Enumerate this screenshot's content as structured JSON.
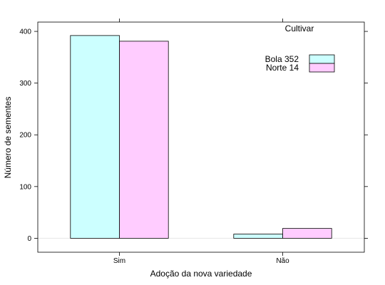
{
  "chart_data": {
    "type": "bar",
    "categories": [
      "Sim",
      "Não"
    ],
    "series": [
      {
        "name": "Bola 352",
        "values": [
          392,
          8
        ],
        "color": "#ccffff"
      },
      {
        "name": "Norte 14",
        "values": [
          381,
          19
        ],
        "color": "#ffccff"
      }
    ],
    "xlabel": "Adoção da nova variedade",
    "ylabel": "Número de sementes",
    "yticks": [
      0,
      100,
      200,
      300,
      400
    ],
    "ylim": [
      -27,
      418
    ],
    "legend": {
      "title": "Cultivar",
      "placement": "top-right"
    },
    "grid": false
  }
}
